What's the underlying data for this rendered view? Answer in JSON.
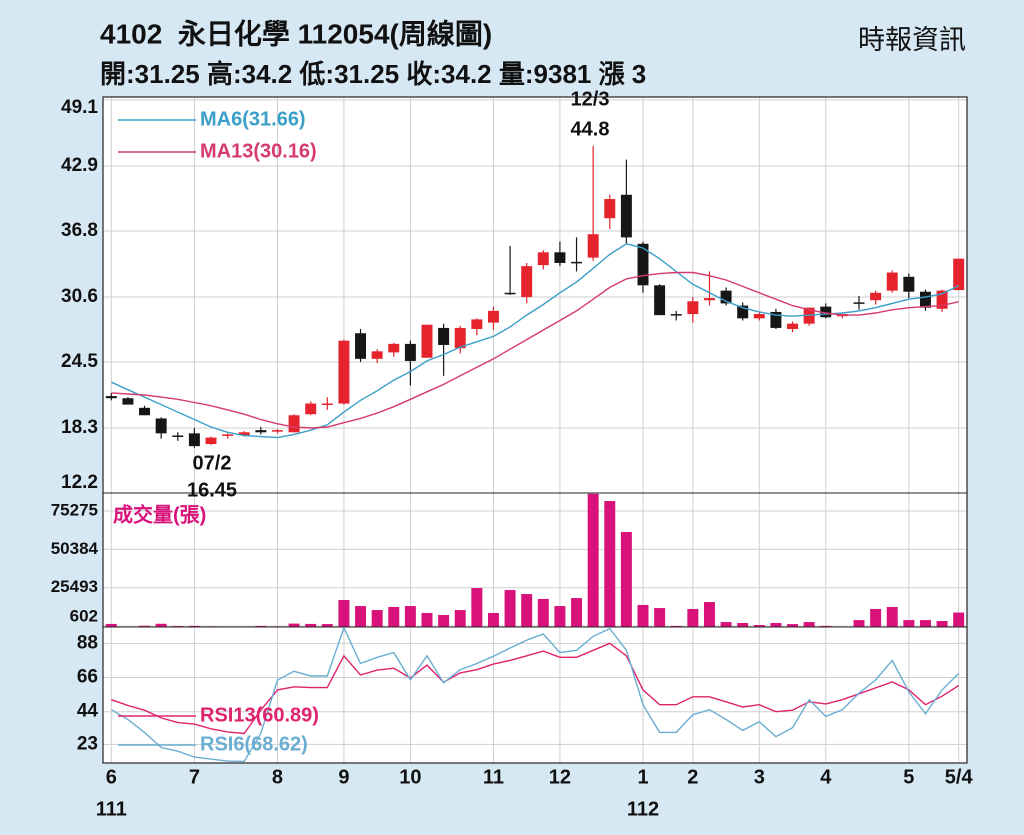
{
  "header": {
    "title": "4102  永日化學 112054(周線圖)",
    "stats": "開:31.25 高:34.2 低:31.25 收:34.2 量:9381 漲 3",
    "source": "時報資訊"
  },
  "chart_data": [
    {
      "type": "candlestick",
      "ylim": [
        12.2,
        49.1
      ],
      "yticks": [
        12.2,
        18.3,
        24.5,
        30.6,
        36.8,
        42.9,
        49.1
      ],
      "grid": true,
      "up_color": "#e4232c",
      "down_color": "#161616",
      "open": [
        21.3,
        21.1,
        20.2,
        19.2,
        17.6,
        17.8,
        16.8,
        17.6,
        17.6,
        18.1,
        18.0,
        17.9,
        19.6,
        20.5,
        20.6,
        27.2,
        24.8,
        25.4,
        26.2,
        24.9,
        27.7,
        25.8,
        27.6,
        28.2,
        31.0,
        30.6,
        33.6,
        34.8,
        33.9,
        34.3,
        38.0,
        40.2,
        35.6,
        31.7,
        29.0,
        29.0,
        30.3,
        31.2,
        29.8,
        28.6,
        29.2,
        27.6,
        28.1,
        29.7,
        28.8,
        30.1,
        30.3,
        31.2,
        32.5,
        31.1,
        29.5,
        31.25
      ],
      "high": [
        21.6,
        21.2,
        20.4,
        19.3,
        17.9,
        18.3,
        17.5,
        17.8,
        18.0,
        18.4,
        18.2,
        19.6,
        20.8,
        21.2,
        26.6,
        27.6,
        25.7,
        26.3,
        26.5,
        28.0,
        28.1,
        27.9,
        28.6,
        29.7,
        35.4,
        33.8,
        35.0,
        35.8,
        36.2,
        44.8,
        40.2,
        43.5,
        35.8,
        31.8,
        29.3,
        30.6,
        33.0,
        31.5,
        30.1,
        29.2,
        29.5,
        28.3,
        29.6,
        30.0,
        29.1,
        30.7,
        31.2,
        33.1,
        32.8,
        31.3,
        31.3,
        34.2
      ],
      "low": [
        20.9,
        20.5,
        19.5,
        17.3,
        17.1,
        16.45,
        16.7,
        17.3,
        17.5,
        17.7,
        17.8,
        17.9,
        19.5,
        20.0,
        20.5,
        24.5,
        24.4,
        25.0,
        22.3,
        24.9,
        23.2,
        25.3,
        27.0,
        27.5,
        30.8,
        30.0,
        33.2,
        33.5,
        33.0,
        34.0,
        37.0,
        35.6,
        31.0,
        28.9,
        28.4,
        28.2,
        29.8,
        29.8,
        28.4,
        28.4,
        27.6,
        27.3,
        27.9,
        28.6,
        28.6,
        29.4,
        29.9,
        31.0,
        30.5,
        29.3,
        29.2,
        31.25
      ],
      "close": [
        21.1,
        20.5,
        19.5,
        17.8,
        17.5,
        16.6,
        17.4,
        17.7,
        17.9,
        17.9,
        18.1,
        19.5,
        20.6,
        20.6,
        26.5,
        24.8,
        25.5,
        26.2,
        24.6,
        28.0,
        26.1,
        27.7,
        28.5,
        29.3,
        31.0,
        33.5,
        34.8,
        33.8,
        33.9,
        36.5,
        39.8,
        36.2,
        31.7,
        28.9,
        28.9,
        30.2,
        30.5,
        30.0,
        28.6,
        29.0,
        27.7,
        28.1,
        29.6,
        28.7,
        29.0,
        30.1,
        31.0,
        32.9,
        31.1,
        29.6,
        31.2,
        34.2
      ],
      "series": [
        {
          "name": "MA6(31.66)",
          "color": "#3a9fc9",
          "values": [
            22.6,
            21.9,
            21.2,
            20.5,
            19.8,
            19.1,
            18.4,
            17.9,
            17.6,
            17.5,
            17.4,
            17.7,
            18.1,
            18.6,
            19.8,
            20.9,
            21.8,
            22.8,
            23.6,
            24.6,
            25.2,
            25.9,
            26.4,
            26.9,
            27.8,
            28.9,
            29.9,
            31.0,
            32.0,
            33.3,
            34.6,
            35.6,
            35.2,
            34.2,
            33.0,
            31.8,
            31.0,
            30.2,
            29.6,
            29.2,
            28.9,
            28.8,
            28.9,
            29.0,
            29.1,
            29.3,
            29.6,
            30.0,
            30.4,
            30.6,
            30.9,
            31.66
          ]
        },
        {
          "name": "MA13(30.16)",
          "color": "#d63a6e",
          "values": [
            21.6,
            21.5,
            21.4,
            21.2,
            21.0,
            20.7,
            20.4,
            20.0,
            19.6,
            19.1,
            18.7,
            18.4,
            18.3,
            18.4,
            18.8,
            19.2,
            19.7,
            20.3,
            21.0,
            21.7,
            22.4,
            23.2,
            24.0,
            24.8,
            25.7,
            26.6,
            27.5,
            28.4,
            29.3,
            30.4,
            31.5,
            32.3,
            32.6,
            32.8,
            32.9,
            32.9,
            32.6,
            32.2,
            31.6,
            31.0,
            30.4,
            29.8,
            29.4,
            29.1,
            28.9,
            28.9,
            29.1,
            29.4,
            29.6,
            29.7,
            29.8,
            30.16
          ]
        }
      ],
      "annotations": [
        {
          "date": "12/3",
          "value": 44.8
        },
        {
          "date": "07/2",
          "value": 16.45
        }
      ]
    },
    {
      "type": "bar",
      "title": "成交量(張)",
      "color": "#d8127a",
      "ylim": [
        0,
        87000
      ],
      "yticks": [
        602,
        25493,
        50384,
        75275
      ],
      "grid": true,
      "values": [
        2000,
        300,
        800,
        2100,
        600,
        700,
        400,
        300,
        300,
        700,
        400,
        2200,
        2000,
        1900,
        17500,
        13600,
        11000,
        13000,
        13600,
        9100,
        7800,
        11000,
        25300,
        9100,
        24000,
        21400,
        18200,
        13600,
        18800,
        86500,
        81800,
        61700,
        14300,
        12300,
        700,
        11700,
        16200,
        3200,
        2600,
        1300,
        2600,
        1900,
        3200,
        700,
        300,
        4500,
        11700,
        13000,
        4500,
        4500,
        3900,
        9381
      ]
    },
    {
      "type": "line",
      "ylim": [
        11,
        98.5
      ],
      "yticks": [
        23,
        44,
        66,
        88
      ],
      "grid": true,
      "categories": [
        "6",
        null,
        null,
        null,
        null,
        "7",
        null,
        null,
        null,
        null,
        "8",
        null,
        null,
        null,
        "9",
        null,
        null,
        null,
        "10",
        null,
        null,
        null,
        null,
        "11",
        null,
        null,
        null,
        "12",
        null,
        null,
        null,
        null,
        "1",
        null,
        null,
        "2",
        null,
        null,
        null,
        "3",
        null,
        null,
        null,
        "4",
        null,
        null,
        null,
        null,
        "5",
        null,
        null,
        "5/4"
      ],
      "category_years": [
        "111",
        null,
        null,
        null,
        null,
        null,
        null,
        null,
        null,
        null,
        null,
        null,
        null,
        null,
        null,
        null,
        null,
        null,
        null,
        null,
        null,
        null,
        null,
        null,
        null,
        null,
        null,
        null,
        null,
        null,
        null,
        null,
        "112",
        null,
        null,
        null,
        null,
        null,
        null,
        null,
        null,
        null,
        null,
        null,
        null,
        null,
        null,
        null,
        null,
        null,
        null,
        null
      ],
      "series": [
        {
          "name": "RSI13(60.89)",
          "color": "#e0226e",
          "values": [
            51.7,
            48,
            45,
            40,
            37,
            36,
            33,
            31,
            30,
            45,
            58,
            60,
            59.5,
            59.5,
            80,
            67.6,
            70.8,
            72,
            65.7,
            74,
            63,
            69,
            71,
            74.6,
            77,
            80,
            83,
            79,
            79,
            83.5,
            88,
            80,
            58,
            48.5,
            48.5,
            53.6,
            53.6,
            50.4,
            47,
            48.5,
            44,
            45,
            50.4,
            49,
            51.7,
            55.5,
            59.3,
            63.2,
            58,
            48.5,
            54,
            60.89
          ]
        },
        {
          "name": "RSI6(68.62)",
          "color": "#6aaed2",
          "values": [
            45.3,
            39,
            30.7,
            21,
            18.6,
            14.8,
            13.5,
            12.2,
            12,
            30,
            64.4,
            70,
            67,
            67,
            98,
            75,
            79,
            82,
            64.5,
            80,
            62.6,
            71,
            75,
            79.7,
            85,
            90,
            94,
            82,
            83.5,
            92.5,
            97.5,
            83.5,
            48.5,
            30.7,
            30.7,
            42,
            45.3,
            39,
            32,
            37.6,
            28,
            33.7,
            51.7,
            41,
            45.3,
            56,
            64.4,
            77,
            56.8,
            42.7,
            58,
            68.62
          ]
        }
      ]
    }
  ]
}
